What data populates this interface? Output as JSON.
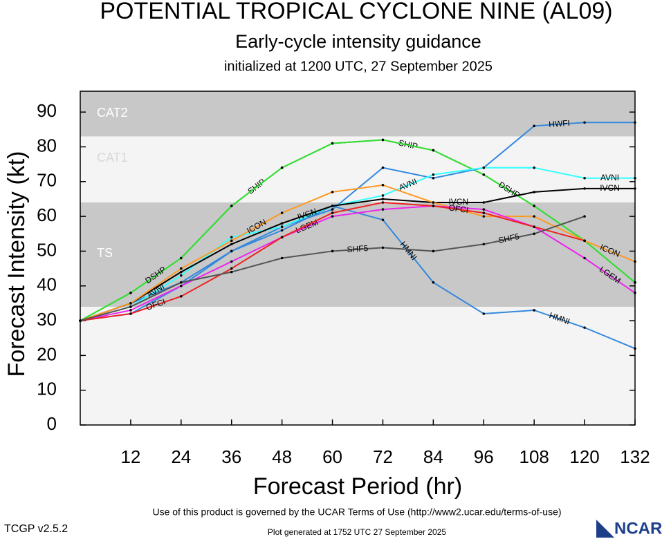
{
  "chart_data": {
    "type": "line",
    "title": "POTENTIAL TROPICAL CYCLONE NINE (AL09)",
    "subtitle": "Early-cycle intensity guidance",
    "initialized": "initialized at 1200 UTC, 27 September 2025",
    "xlabel": "Forecast Period (hr)",
    "ylabel": "Forecast Intensity (kt)",
    "terms": "Use of this product is governed by the UCAR Terms of Use (http://www2.ucar.edu/terms-of-use)",
    "version": "TCGP v2.5.2",
    "generated": "Plot generated at 1752 UTC   27 September 2025",
    "logo": "NCAR",
    "x": [
      0,
      12,
      24,
      36,
      48,
      60,
      72,
      84,
      96,
      108,
      120,
      132
    ],
    "xlim": [
      0,
      132
    ],
    "xticks": [
      12,
      24,
      36,
      48,
      60,
      72,
      84,
      96,
      108,
      120,
      132
    ],
    "ylim": [
      0,
      96
    ],
    "yticks": [
      0,
      10,
      20,
      30,
      40,
      50,
      60,
      70,
      80,
      90
    ],
    "bands": [
      {
        "label": "TS",
        "from": 34,
        "to": 64,
        "color": "#c8c8c8",
        "text_color": "#ffffff"
      },
      {
        "label": "CAT1",
        "from": 64,
        "to": 83,
        "color": "#f4f4f4",
        "text_color": "#d8d8d8"
      },
      {
        "label": "CAT2",
        "from": 83,
        "to": 96,
        "color": "#c8c8c8",
        "text_color": "#ffffff"
      }
    ],
    "series": [
      {
        "name": "SHIP",
        "color": "#33dd33",
        "values": [
          30,
          38,
          48,
          63,
          74,
          81,
          82,
          79,
          72,
          63,
          53,
          41
        ]
      },
      {
        "name": "DSHP",
        "color": "#33dd33",
        "values": [
          30,
          38,
          48,
          63,
          74,
          81,
          82,
          79,
          72,
          63,
          53,
          41
        ]
      },
      {
        "name": "HWFI",
        "color": "#3388dd",
        "values": [
          30,
          35,
          41,
          50,
          57,
          62,
          74,
          71,
          74,
          86,
          87,
          87
        ]
      },
      {
        "name": "HMNI",
        "color": "#3388dd",
        "values": [
          30,
          32,
          40,
          50,
          56,
          63,
          59,
          41,
          32,
          33,
          28,
          22
        ]
      },
      {
        "name": "AVNI",
        "color": "#33ffff",
        "values": [
          30,
          34,
          43,
          54,
          57,
          63,
          66,
          72,
          74,
          74,
          71,
          71
        ]
      },
      {
        "name": "IVCN",
        "color": "#000000",
        "values": [
          30,
          35,
          44,
          52,
          58,
          63,
          65,
          64,
          64,
          67,
          68,
          68
        ]
      },
      {
        "name": "ICON",
        "color": "#ff9922",
        "values": [
          30,
          35,
          45,
          53,
          61,
          67,
          69,
          64,
          60,
          60,
          53,
          47
        ]
      },
      {
        "name": "LGEM",
        "color": "#ee22ee",
        "values": [
          30,
          33,
          40,
          47,
          54,
          60,
          62,
          63,
          62,
          57,
          48,
          38
        ]
      },
      {
        "name": "OFCI",
        "color": "#ee2222",
        "values": [
          30,
          32,
          37,
          45,
          54,
          61,
          64,
          63,
          61,
          57,
          53,
          null
        ]
      },
      {
        "name": "SHF5",
        "color": "#555555",
        "values": [
          30,
          34,
          41,
          44,
          48,
          50,
          51,
          50,
          52,
          55,
          60,
          null
        ]
      }
    ]
  }
}
